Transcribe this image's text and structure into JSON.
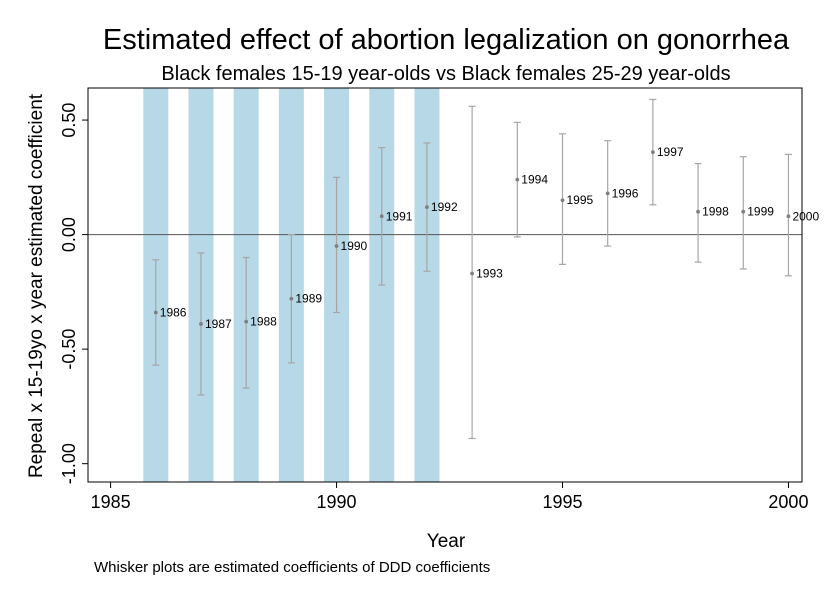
{
  "chart_data": {
    "type": "scatter",
    "title": "Estimated effect of abortion legalization on gonorrhea",
    "subtitle": "Black females 15-19 year-olds vs Black females 25-29 year-olds",
    "xlabel": "Year",
    "ylabel": "Repeal x 15-19yo x year estimated coefficient",
    "note": "Whisker plots are estimated coefficients of DDD coefficients",
    "xlim": [
      1984.5,
      2000.3
    ],
    "ylim": [
      -1.08,
      0.64
    ],
    "xticks": [
      1985,
      1990,
      1995,
      2000
    ],
    "xtick_labels": [
      "1985",
      "1990",
      "1995",
      "2000"
    ],
    "yticks": [
      0.5,
      0.0,
      -0.5,
      -1.0
    ],
    "ytick_labels": [
      "0.50",
      "0.00",
      "-0.50",
      "-1.00"
    ],
    "reference_line_y": 0,
    "grid": false,
    "shaded_years": [
      1986,
      1987,
      1988,
      1989,
      1990,
      1991,
      1992
    ],
    "colors": {
      "shade": "#b7d8e6",
      "whisker": "#a6a6a6",
      "point": "#7f7f7f",
      "zero_line": "#555555",
      "frame": "#000000"
    },
    "points": [
      {
        "label": "1986",
        "x": 1986,
        "y": -0.34,
        "lo": -0.57,
        "hi": -0.11
      },
      {
        "label": "1987",
        "x": 1987,
        "y": -0.39,
        "lo": -0.7,
        "hi": -0.08
      },
      {
        "label": "1988",
        "x": 1988,
        "y": -0.38,
        "lo": -0.67,
        "hi": -0.1
      },
      {
        "label": "1989",
        "x": 1989,
        "y": -0.28,
        "lo": -0.56,
        "hi": 0.0
      },
      {
        "label": "1990",
        "x": 1990,
        "y": -0.05,
        "lo": -0.34,
        "hi": 0.25
      },
      {
        "label": "1991",
        "x": 1991,
        "y": 0.08,
        "lo": -0.22,
        "hi": 0.38
      },
      {
        "label": "1992",
        "x": 1992,
        "y": 0.12,
        "lo": -0.16,
        "hi": 0.4
      },
      {
        "label": "1993",
        "x": 1993,
        "y": -0.17,
        "lo": -0.89,
        "hi": 0.56
      },
      {
        "label": "1994",
        "x": 1994,
        "y": 0.24,
        "lo": -0.01,
        "hi": 0.49
      },
      {
        "label": "1995",
        "x": 1995,
        "y": 0.15,
        "lo": -0.13,
        "hi": 0.44
      },
      {
        "label": "1996",
        "x": 1996,
        "y": 0.18,
        "lo": -0.05,
        "hi": 0.41
      },
      {
        "label": "1997",
        "x": 1997,
        "y": 0.36,
        "lo": 0.13,
        "hi": 0.59
      },
      {
        "label": "1998",
        "x": 1998,
        "y": 0.1,
        "lo": -0.12,
        "hi": 0.31
      },
      {
        "label": "1999",
        "x": 1999,
        "y": 0.1,
        "lo": -0.15,
        "hi": 0.34
      },
      {
        "label": "2000",
        "x": 2000,
        "y": 0.08,
        "lo": -0.18,
        "hi": 0.35
      }
    ]
  }
}
